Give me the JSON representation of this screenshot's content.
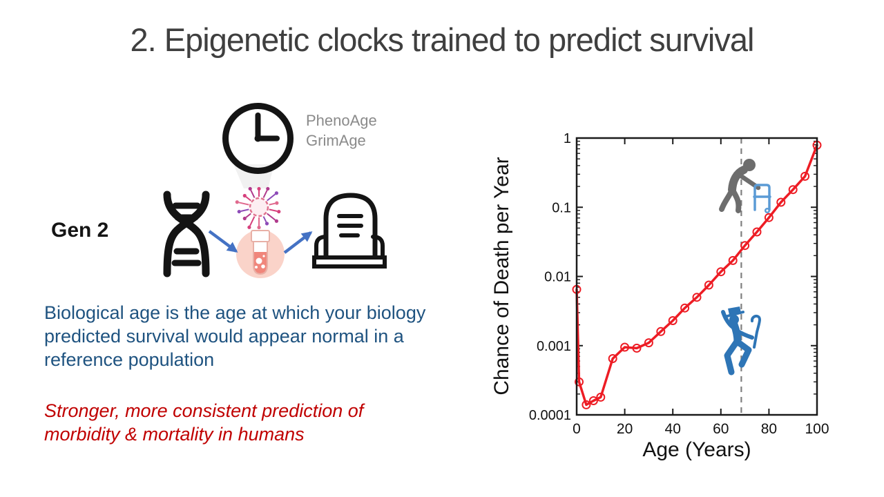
{
  "slide": {
    "title": "2. Epigenetic clocks trained to predict survival",
    "gen_label": "Gen 2",
    "clock_names": [
      "PhenoAge",
      "GrimAge"
    ],
    "definition_lines": [
      "Biological age is the age at which your biology",
      "predicted survival would appear normal in a",
      "reference population"
    ],
    "emphasis_lines": [
      "Stronger, more consistent prediction of",
      "morbidity & mortality in humans"
    ],
    "icons": [
      "dna-icon",
      "clock-icon",
      "beam-icon",
      "virus-icon",
      "test-tube-icon",
      "tombstone-icon",
      "arrow-right-down-icon",
      "arrow-right-up-icon",
      "elderly-with-walker-icon",
      "dancing-senior-icon"
    ],
    "colors": {
      "title_gray": "#3f3f3f",
      "text_blue": "#1f5380",
      "text_red": "#c00000",
      "label_gray": "#8a8a8a",
      "arrow_blue": "#4472c4",
      "chart_red": "#ed1c24",
      "dashed_gray": "#7f7f7f",
      "man_gray": "#6d6d6d",
      "walker_blue": "#5b9bd5",
      "dancer_blue": "#2e75b6"
    }
  },
  "chart_data": {
    "type": "line",
    "title": "",
    "xlabel": "Age (Years)",
    "ylabel": "Chance of Death per Year",
    "x_ticks": [
      0,
      20,
      40,
      60,
      80,
      100
    ],
    "y_ticks": [
      {
        "label": "1",
        "value": 1
      },
      {
        "label": "0.1",
        "value": 0.1
      },
      {
        "label": "0.01",
        "value": 0.01
      },
      {
        "label": "0.001",
        "value": 0.001
      },
      {
        "label": "0.0001",
        "value": 0.0001
      }
    ],
    "y_scale": "log",
    "xlim": [
      0,
      100
    ],
    "ylim": [
      0.0001,
      1
    ],
    "grid": false,
    "legend": "none",
    "dashed_line_age": 68.5,
    "series": [
      {
        "name": "chance-of-death-per-year",
        "color": "#ed1c24",
        "marker": "open-circle",
        "points": [
          [
            0,
            0.0065
          ],
          [
            1,
            0.0003
          ],
          [
            4,
            0.00014
          ],
          [
            7,
            0.00016
          ],
          [
            10,
            0.00018
          ],
          [
            15,
            0.00065
          ],
          [
            20,
            0.00095
          ],
          [
            25,
            0.00092
          ],
          [
            30,
            0.0011
          ],
          [
            35,
            0.0016
          ],
          [
            40,
            0.0023
          ],
          [
            45,
            0.0035
          ],
          [
            50,
            0.005
          ],
          [
            55,
            0.0075
          ],
          [
            60,
            0.0117
          ],
          [
            65,
            0.017
          ],
          [
            70,
            0.028
          ],
          [
            75,
            0.044
          ],
          [
            80,
            0.071
          ],
          [
            85,
            0.118
          ],
          [
            90,
            0.18
          ],
          [
            95,
            0.28
          ],
          [
            100,
            0.79
          ]
        ]
      }
    ],
    "annotations": [
      "elderly person with walker above dashed line",
      "dancing senior with cane below dashed line"
    ]
  }
}
